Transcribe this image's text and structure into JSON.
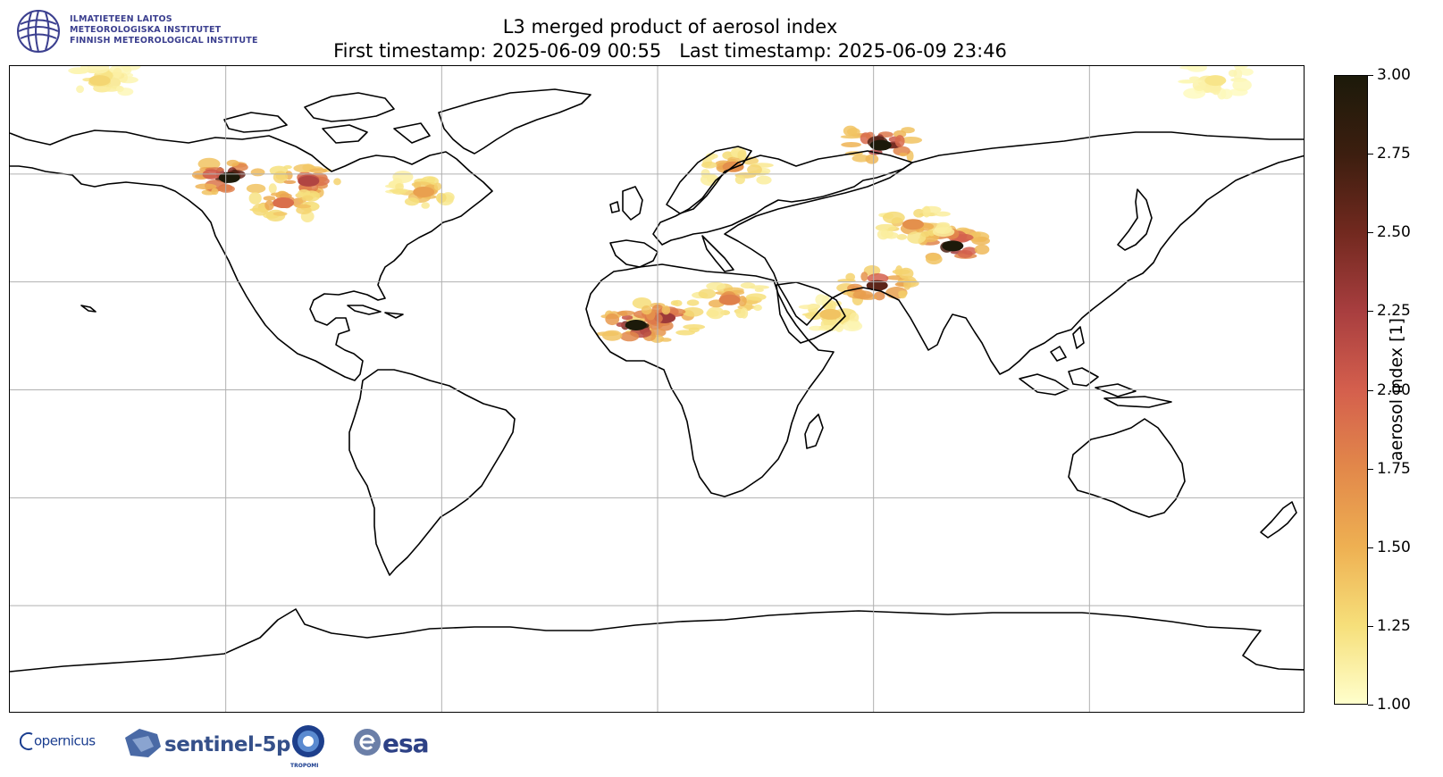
{
  "logo_fmi": {
    "lines": [
      "ILMATIETEEN LAITOS",
      "METEOROLOGISKA INSTITUTET",
      "FINNISH METEOROLOGICAL INSTITUTE"
    ],
    "icon": "fmi-emblem-icon",
    "color": "#3b3f8f"
  },
  "title": {
    "line1": "L3 merged product of aerosol index",
    "line2": "First timestamp: 2025-06-09 00:55   Last timestamp: 2025-06-09 23:46"
  },
  "map": {
    "projection": "plate-carree",
    "extent": {
      "lon": [
        -180,
        180
      ],
      "lat": [
        -90,
        90
      ]
    },
    "gridlines": {
      "lon": [
        -120,
        -60,
        0,
        60,
        120
      ],
      "lat": [
        -60,
        -30,
        0,
        30,
        60
      ]
    },
    "grid_color": "#b0b0b0",
    "coastline_color": "#000000",
    "aerosol_hotspots": [
      {
        "region": "western Canada smoke",
        "lon": -119,
        "lat": 59,
        "value": 3.0
      },
      {
        "region": "Hudson Bay smoke",
        "lon": -97,
        "lat": 58,
        "value": 2.2
      },
      {
        "region": "Great Lakes smoke",
        "lon": -104,
        "lat": 52,
        "value": 1.9
      },
      {
        "region": "Labrador smoke",
        "lon": -65,
        "lat": 55,
        "value": 1.6
      },
      {
        "region": "Sahara dust",
        "lon": 2,
        "lat": 20,
        "value": 2.3
      },
      {
        "region": "Mali dust core",
        "lon": -6,
        "lat": 18,
        "value": 3.0
      },
      {
        "region": "Libya/Egypt dust",
        "lon": 20,
        "lat": 25,
        "value": 1.8
      },
      {
        "region": "Arabian dust",
        "lon": 48,
        "lat": 21,
        "value": 1.4
      },
      {
        "region": "Iran/Pakistan dust",
        "lon": 61,
        "lat": 29,
        "value": 2.6
      },
      {
        "region": "Taklamakan dust",
        "lon": 82,
        "lat": 40,
        "value": 3.0
      },
      {
        "region": "Kazakh dust",
        "lon": 71,
        "lat": 46,
        "value": 1.7
      },
      {
        "region": "Siberia smoke",
        "lon": 62,
        "lat": 68,
        "value": 3.0
      },
      {
        "region": "Scandinavia smoke",
        "lon": 21,
        "lat": 62,
        "value": 1.7
      },
      {
        "region": "Arctic NW",
        "lon": -155,
        "lat": 86,
        "value": 1.3
      },
      {
        "region": "Arctic NE",
        "lon": 155,
        "lat": 86,
        "value": 1.2
      }
    ]
  },
  "colorbar": {
    "label": "aerosol index [1]",
    "min": 1.0,
    "max": 3.0,
    "ticks": [
      "1.00",
      "1.25",
      "1.50",
      "1.75",
      "2.00",
      "2.25",
      "2.50",
      "2.75",
      "3.00"
    ],
    "colormap": [
      "#ffffcc",
      "#f6df7a",
      "#eeb052",
      "#e2884a",
      "#d45f4d",
      "#a83e3f",
      "#72291f",
      "#3c1e0f",
      "#1c1a0a"
    ]
  },
  "logos": {
    "copernicus": "opernicus",
    "copernicus_icon": "copernicus-c-icon",
    "sentinel": "sentinel-5p",
    "sentinel_icon": "sentinel-5p-satellite-icon",
    "tropomi": "TROPOMI",
    "tropomi_icon": "tropomi-eye-icon",
    "esa": "esa",
    "esa_icon": "esa-e-icon"
  }
}
